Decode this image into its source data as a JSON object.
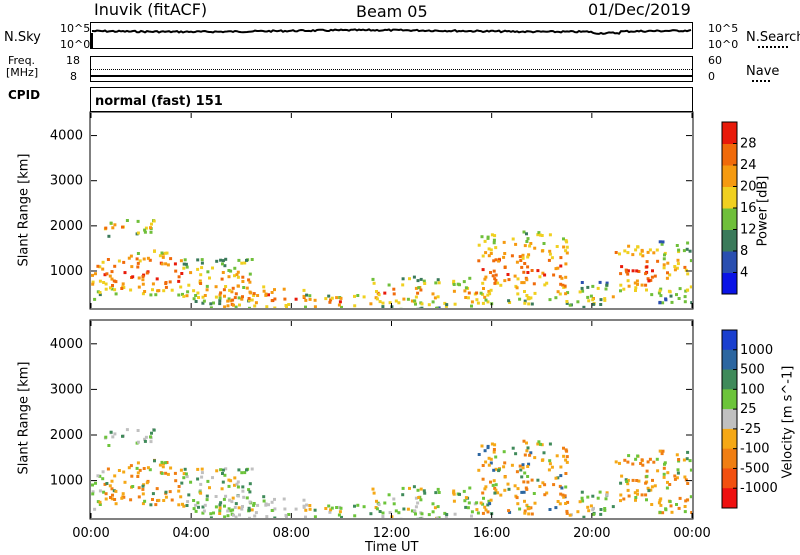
{
  "header": {
    "station": "Inuvik (fitACF)",
    "beam": "Beam 05",
    "date": "01/Dec/2019"
  },
  "nsky": {
    "label": "N.Sky",
    "ticks_left": [
      "10^5",
      "10^0"
    ],
    "right_label": "N.Search",
    "ticks_right": [
      "10^5",
      "10^0"
    ]
  },
  "freq": {
    "label_line1": "Freq.",
    "label_line2": "[MHz]",
    "ticks_left": [
      "18",
      "8"
    ],
    "right_label": "Nave",
    "ticks_right": [
      "60",
      "0"
    ]
  },
  "cpid": {
    "label": "CPID",
    "mode": "normal (fast) 151"
  },
  "colors": {
    "power_scale": [
      "#0a14e6",
      "#2a4fb0",
      "#3a7a5a",
      "#6fbf3a",
      "#f0d020",
      "#f59a10",
      "#f06a0a",
      "#e81a0a"
    ],
    "velocity_scale": [
      "#ee1010",
      "#f25010",
      "#f07e12",
      "#f5a816",
      "#c0c0c0",
      "#6cc43a",
      "#3f8a5a",
      "#2c66a0",
      "#1a3fcf"
    ]
  },
  "chart_data": [
    {
      "type": "heatmap",
      "title": "",
      "xlabel": "",
      "ylabel": "Slant Range [km]",
      "xlim": [
        "00:00",
        "00:00"
      ],
      "x_ticks": [
        "00:00",
        "04:00",
        "08:00",
        "12:00",
        "16:00",
        "20:00",
        "00:00"
      ],
      "ylim": [
        180,
        4500
      ],
      "y_ticks": [
        "1000",
        "2000",
        "3000",
        "4000"
      ],
      "colorbar": {
        "label": "Power [dB]",
        "ticks": [
          "4",
          "8",
          "12",
          "16",
          "20",
          "24",
          "28"
        ]
      }
    },
    {
      "type": "heatmap",
      "title": "",
      "xlabel": "Time UT",
      "ylabel": "Slant Range [km]",
      "xlim": [
        "00:00",
        "00:00"
      ],
      "x_ticks": [
        "00:00",
        "04:00",
        "08:00",
        "12:00",
        "16:00",
        "20:00",
        "00:00"
      ],
      "ylim": [
        180,
        4500
      ],
      "y_ticks": [
        "1000",
        "2000",
        "3000",
        "4000"
      ],
      "colorbar": {
        "label": "Velocity [m s^-1]",
        "ticks": [
          "1000",
          "500",
          "100",
          "25",
          "-25",
          "-100",
          "-500",
          "-1000"
        ]
      }
    }
  ]
}
